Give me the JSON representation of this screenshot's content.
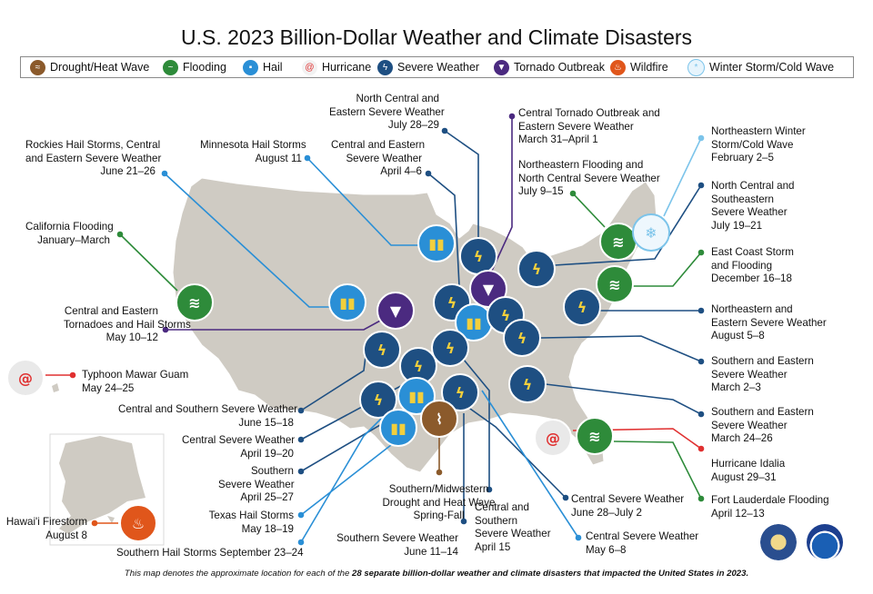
{
  "title": "U.S. 2023 Billion-Dollar Weather and Climate Disasters",
  "legend": [
    {
      "label": "Drought/Heat Wave",
      "icon": "drought-icon",
      "color": "#8b5a2b"
    },
    {
      "label": "Flooding",
      "icon": "flooding-icon",
      "color": "#2e8b3a"
    },
    {
      "label": "Hail",
      "icon": "hail-icon",
      "color": "#2a8fd6"
    },
    {
      "label": "Hurricane",
      "icon": "hurricane-icon",
      "color": "#e03030"
    },
    {
      "label": "Severe Weather",
      "icon": "severe-weather-icon",
      "color": "#1e4f82"
    },
    {
      "label": "Tornado Outbreak",
      "icon": "tornado-icon",
      "color": "#4b2a80"
    },
    {
      "label": "Wildfire",
      "icon": "wildfire-icon",
      "color": "#e0561b"
    },
    {
      "label": "Winter Storm/Cold Wave",
      "icon": "winter-storm-icon",
      "color": "#7cc4ea"
    }
  ],
  "events": {
    "e1": "North Central and\nEastern Severe Weather\nJuly 28–29",
    "e2": "Central Tornado Outbreak and\nEastern Severe Weather\nMarch 31–April 1",
    "e3": "Minnesota Hail Storms\nAugust 11",
    "e4": "Central and Eastern\nSevere Weather\nApril 4–6",
    "e5": "Rockies Hail Storms, Central\nand Eastern Severe Weather\nJune 21–26",
    "e6": "Northeastern Flooding and\nNorth Central Severe Weather\nJuly 9–15",
    "e7": "Northeastern Winter\nStorm/Cold Wave\nFebruary 2–5",
    "e8": "North Central and\nSoutheastern\nSevere Weather\nJuly 19–21",
    "e9": "California Flooding\nJanuary–March",
    "e10": "East Coast Storm\nand Flooding\nDecember 16–18",
    "e11": "Central and Eastern\nTornadoes and Hail Storms\nMay 10–12",
    "e12": "Northeastern and\nEastern Severe Weather\nAugust 5–8",
    "e13": "Typhoon Mawar Guam\nMay 24–25",
    "e14": "Southern and Eastern\nSevere Weather\nMarch 2–3",
    "e15": "Central and Southern Severe Weather\nJune 15–18",
    "e16": "Southern and Eastern\nSevere Weather\nMarch 24–26",
    "e17": "Central Severe Weather\nApril 19–20",
    "e18": "Hurricane Idalia\nAugust 29–31",
    "e19": "Southern\nSevere Weather\nApril 25–27",
    "e20": "Southern/Midwestern\nDrought and Heat Wave\nSpring-Fall",
    "e21": "Central Severe Weather\nJune 28–July 2",
    "e22": "Fort Lauderdale Flooding\nApril 12–13",
    "e23": "Texas Hail Storms\nMay 18–19",
    "e24": "Central and\nSouthern\nSevere Weather\nApril 15",
    "e25": "Hawai'i Firestorm\nAugust 8",
    "e26": "Central Severe Weather\nMay 6–8",
    "e27": "Southern Severe Weather\nJune 11–14",
    "e28": "Southern Hail Storms September 23–24"
  },
  "footer_pre": "This map denotes the approximate location for each of the ",
  "footer_bold": "28 separate billion-dollar weather and climate disasters that impacted the United States in 2023.",
  "seals": [
    "doc-seal",
    "noaa-logo"
  ]
}
